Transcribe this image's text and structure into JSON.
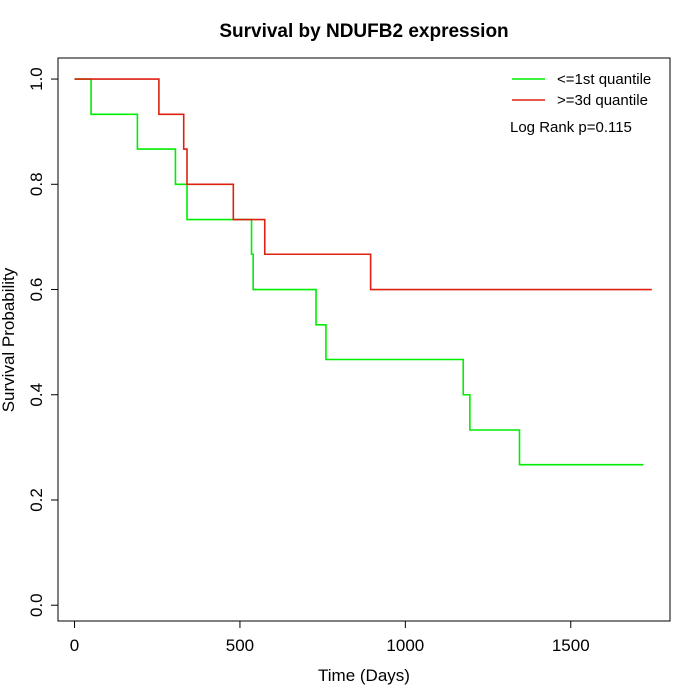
{
  "chart_data": {
    "type": "line",
    "step": true,
    "title": "Survival by NDUFB2 expression",
    "xlabel": "Time (Days)",
    "ylabel": "Survival Probability",
    "xlim": [
      -50,
      1800
    ],
    "ylim": [
      -0.03,
      1.04
    ],
    "xticks": [
      0,
      500,
      1000,
      1500
    ],
    "yticks": [
      0.0,
      0.2,
      0.4,
      0.6,
      0.8,
      1.0
    ],
    "xtick_labels": [
      "0",
      "500",
      "1000",
      "1500"
    ],
    "ytick_labels": [
      "0.0",
      "0.2",
      "0.4",
      "0.6",
      "0.8",
      "1.0"
    ],
    "grid": false,
    "legend_position": "top-right",
    "annotation": "Log Rank p=0.115",
    "series": [
      {
        "name": "<=1st quantile",
        "color": "#00ee00",
        "x": [
          0,
          50,
          190,
          305,
          340,
          535,
          540,
          730,
          760,
          1175,
          1195,
          1345,
          1720
        ],
        "y": [
          1.0,
          0.933,
          0.867,
          0.8,
          0.733,
          0.667,
          0.6,
          0.533,
          0.467,
          0.4,
          0.333,
          0.267,
          0.267
        ]
      },
      {
        "name": ">=3d quantile",
        "color": "#dd2010",
        "x": [
          0,
          255,
          330,
          340,
          480,
          575,
          895,
          1745
        ],
        "y": [
          1.0,
          0.933,
          0.867,
          0.8,
          0.733,
          0.667,
          0.6,
          0.6
        ]
      }
    ]
  }
}
